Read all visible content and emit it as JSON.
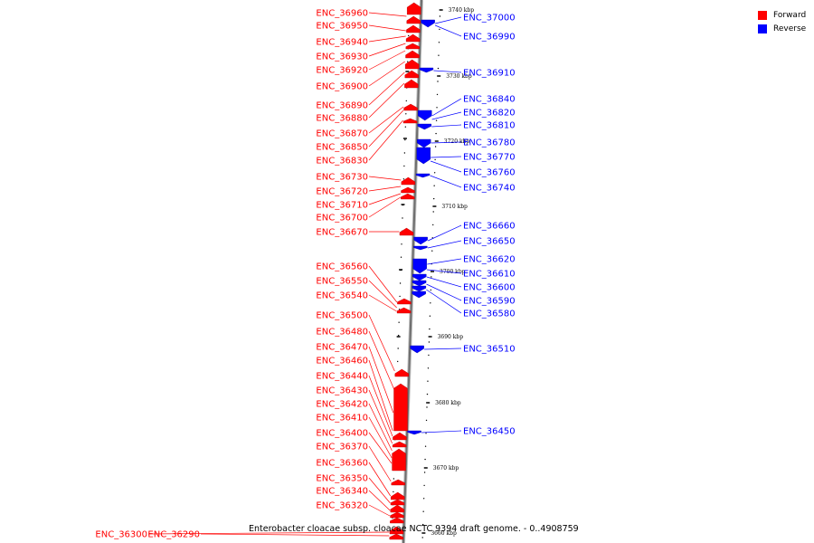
{
  "colors": {
    "forward": "#ff0000",
    "reverse": "#0000ff",
    "backbone": "#888888"
  },
  "legend": [
    {
      "label": "Forward",
      "color": "#ff0000"
    },
    {
      "label": "Reverse",
      "color": "#0000ff"
    }
  ],
  "caption": "Enterobacter cloacae subsp. cloacae NCTC 9394 draft genome. - 0..4908759",
  "scale_labels": [
    "3740 kbp",
    "3730 kbp",
    "3720 kbp",
    "3710 kbp",
    "3700 kbp",
    "3690 kbp",
    "3680 kbp",
    "3670 kbp",
    "3660 kbp"
  ],
  "forward_genes": [
    "ENC_36960",
    "ENC_36950",
    "ENC_36940",
    "ENC_36930",
    "ENC_36920",
    "ENC_36900",
    "ENC_36890",
    "ENC_36880",
    "ENC_36870",
    "ENC_36850",
    "ENC_36830",
    "ENC_36730",
    "ENC_36720",
    "ENC_36710",
    "ENC_36700",
    "ENC_36670",
    "ENC_36560",
    "ENC_36550",
    "ENC_36540",
    "ENC_36500",
    "ENC_36480",
    "ENC_36470",
    "ENC_36460",
    "ENC_36440",
    "ENC_36430",
    "ENC_36420",
    "ENC_36410",
    "ENC_36400",
    "ENC_36370",
    "ENC_36360",
    "ENC_36350",
    "ENC_36340",
    "ENC_36320",
    "ENC_36300",
    "ENC_36290"
  ],
  "reverse_genes": [
    "ENC_37000",
    "ENC_36990",
    "ENC_36910",
    "ENC_36840",
    "ENC_36820",
    "ENC_36810",
    "ENC_36780",
    "ENC_36770",
    "ENC_36760",
    "ENC_36740",
    "ENC_36660",
    "ENC_36650",
    "ENC_36620",
    "ENC_36610",
    "ENC_36600",
    "ENC_36590",
    "ENC_36580",
    "ENC_36510",
    "ENC_36450"
  ]
}
